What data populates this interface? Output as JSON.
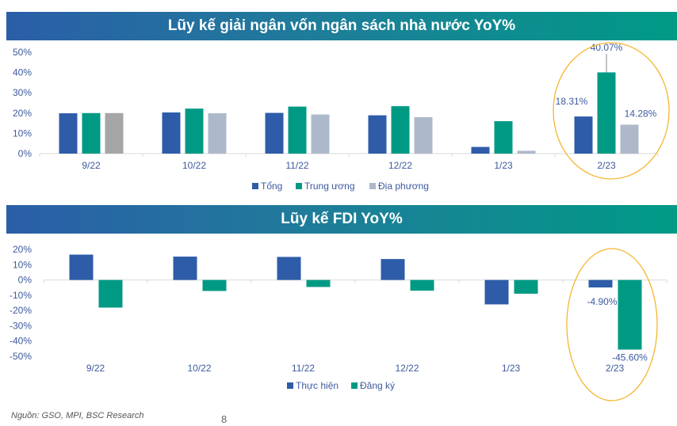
{
  "chart_data": [
    {
      "type": "bar",
      "title": "Lũy kế giải ngân vốn ngân sách nhà nước YoY%",
      "categories": [
        "9/22",
        "10/22",
        "11/22",
        "12/22",
        "1/23",
        "2/23"
      ],
      "yticks": [
        "0%",
        "10%",
        "20%",
        "30%",
        "40%",
        "50%"
      ],
      "ylim": [
        0,
        50
      ],
      "grid": false,
      "legend": "bottom",
      "series": [
        {
          "name": "Tổng",
          "color": "#2e5ca8",
          "values": [
            19.9,
            20.3,
            20.1,
            18.9,
            3.3,
            18.31
          ]
        },
        {
          "name": "Trung ương",
          "color": "#009a84",
          "values": [
            20.0,
            22.2,
            23.2,
            23.4,
            16.0,
            40.07
          ]
        },
        {
          "name": "Địa phương",
          "color": "#adb9ca",
          "point_colors": [
            "#a6a6a6"
          ],
          "values": [
            20.0,
            19.9,
            19.3,
            18.0,
            1.4,
            14.28
          ]
        }
      ],
      "data_labels": [
        {
          "series": 0,
          "category": "2/23",
          "text": "18.31%"
        },
        {
          "series": 1,
          "category": "2/23",
          "text": "40.07%"
        },
        {
          "series": 2,
          "category": "2/23",
          "text": "14.28%"
        }
      ],
      "highlight_color": "#f5b630"
    },
    {
      "type": "bar",
      "title": "Lũy kế FDI YoY%",
      "categories": [
        "9/22",
        "10/22",
        "11/22",
        "12/22",
        "1/23",
        "2/23"
      ],
      "yticks": [
        "20%",
        "10%",
        "0%",
        "-10%",
        "-20%",
        "-30%",
        "-40%",
        "-50%"
      ],
      "ylim": [
        -50,
        20
      ],
      "grid": false,
      "legend": "bottom",
      "series": [
        {
          "name": "Thực hiện",
          "color": "#2e5ca8",
          "values": [
            16.6,
            15.3,
            15.1,
            13.7,
            -16.0,
            -4.9
          ]
        },
        {
          "name": "Đăng ký",
          "color": "#009a84",
          "values": [
            -18.1,
            -7.2,
            -4.6,
            -7.0,
            -9.0,
            -45.6
          ]
        }
      ],
      "data_labels": [
        {
          "series": 0,
          "category": "2/23",
          "text": "-4.90%"
        },
        {
          "series": 1,
          "category": "2/23",
          "text": "-45.60%"
        }
      ],
      "highlight_color": "#f5b630"
    }
  ],
  "footer": {
    "source": "Nguồn: GSO, MPI, BSC Research",
    "page": "8"
  }
}
